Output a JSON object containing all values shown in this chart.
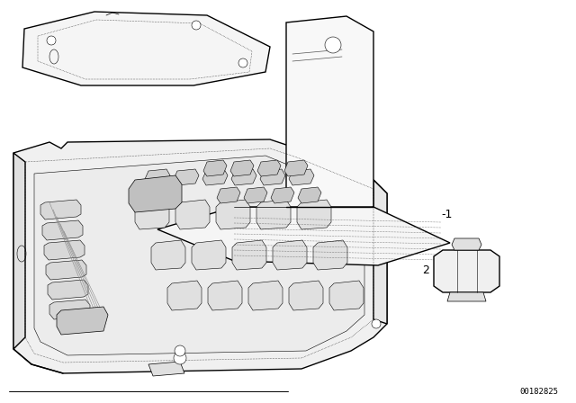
{
  "background_color": "#ffffff",
  "line_color": "#000000",
  "fig_width": 6.4,
  "fig_height": 4.48,
  "dpi": 100,
  "part_number": "00182825",
  "label_minus1": "-1",
  "label_2": "2",
  "lw_outer": 1.0,
  "lw_inner": 0.5,
  "lw_detail": 0.4,
  "lw_dot": 0.4
}
